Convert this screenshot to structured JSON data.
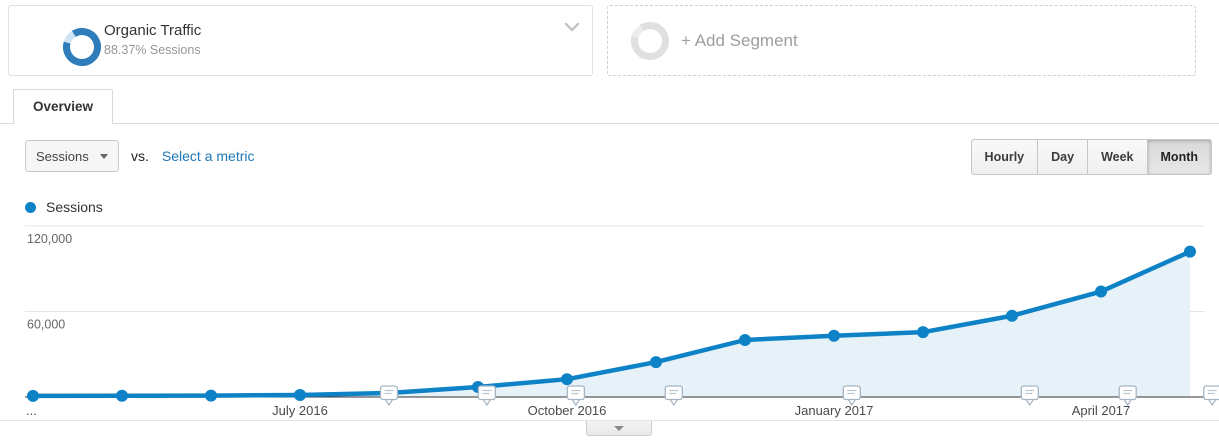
{
  "segments": {
    "active_segment": {
      "title": "Organic Traffic",
      "subtitle": "88.37% Sessions",
      "percent_sessions": 88.37
    },
    "add_segment_label": "+ Add Segment"
  },
  "tabs": {
    "overview": "Overview"
  },
  "toolbar": {
    "metric_selected": "Sessions",
    "vs_label": "vs.",
    "compare_link_label": "Select a metric",
    "granularity_options": [
      "Hourly",
      "Day",
      "Week",
      "Month"
    ],
    "granularity_selected": "Month"
  },
  "legend": {
    "label": "Sessions"
  },
  "colors": {
    "series_blue": "#0d82c6",
    "donut_blue": "#2e7cba",
    "donut_rest": "#cfe3f2",
    "area_fill": "#e7f1f8",
    "gridline": "#e5e5e5",
    "axis_line": "#333333",
    "link_blue": "#1d78b5"
  },
  "chart_data": {
    "type": "line",
    "series_name": "Sessions",
    "x": [
      "April 2016",
      "May 2016",
      "June 2016",
      "July 2016",
      "August 2016",
      "September 2016",
      "October 2016",
      "November 2016",
      "December 2016",
      "January 2017",
      "February 2017",
      "March 2017",
      "April 2017",
      "May 2017"
    ],
    "values": [
      800,
      900,
      1000,
      1400,
      2800,
      7000,
      12500,
      24500,
      40000,
      43000,
      45500,
      57000,
      74000,
      102000
    ],
    "x_tick_labels": [
      {
        "index": 0,
        "label": "..."
      },
      {
        "index": 3,
        "label": "July 2016"
      },
      {
        "index": 6,
        "label": "October 2016"
      },
      {
        "index": 9,
        "label": "January 2017"
      },
      {
        "index": 12,
        "label": "April 2017"
      }
    ],
    "y_ticks": [
      {
        "value": 120000,
        "label": "120,000"
      },
      {
        "value": 60000,
        "label": "60,000"
      }
    ],
    "ylim": [
      0,
      128000
    ],
    "grid": "horizontal",
    "legend_position": "top-left",
    "annotation_marker_offsets": [
      4.0,
      5.1,
      6.1,
      7.2,
      9.2,
      11.2,
      12.3,
      13.25
    ]
  }
}
